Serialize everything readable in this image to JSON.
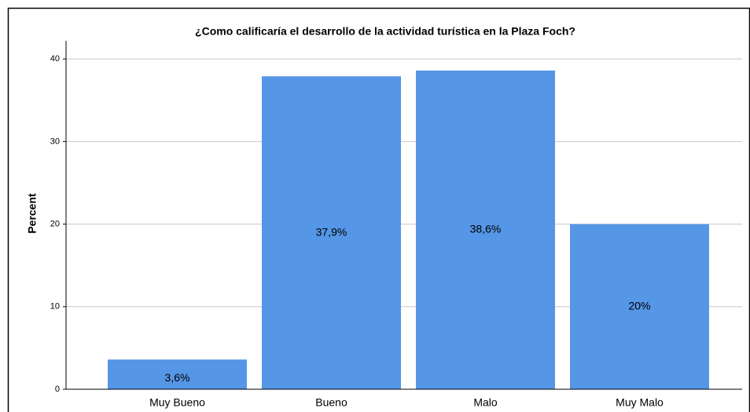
{
  "chart_data": {
    "type": "bar",
    "title": "¿Como calificaría el desarrollo de la actividad turística en la Plaza Foch?",
    "y_label": "Percent",
    "categories": [
      "Muy Bueno",
      "Bueno",
      "Malo",
      "Muy Malo"
    ],
    "values": [
      3.6,
      37.9,
      38.6,
      20
    ],
    "value_labels": [
      "3,6%",
      "37,9%",
      "38,6%",
      "20%"
    ],
    "color": "#5596e6",
    "ylim": [
      0,
      42.2
    ],
    "yticks": [
      0,
      10,
      20,
      30,
      40
    ],
    "grid": true
  }
}
